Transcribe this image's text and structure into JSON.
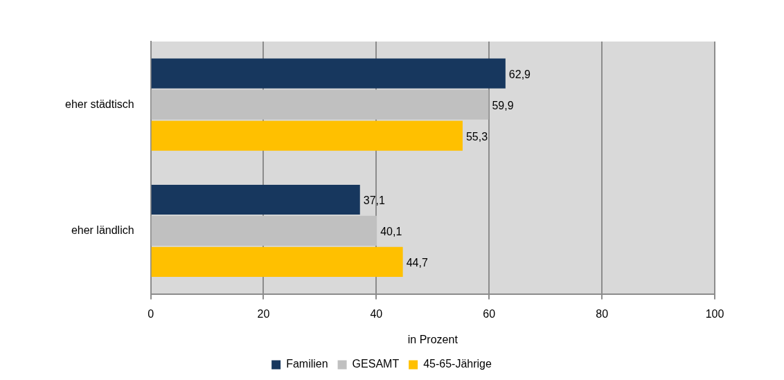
{
  "chart_data": {
    "type": "bar",
    "orientation": "horizontal",
    "xlabel": "in Prozent",
    "categories": [
      "eher städtisch",
      "eher ländlich"
    ],
    "series": [
      {
        "name": "Familien",
        "color": "#17375e",
        "values": [
          62.9,
          37.1
        ],
        "value_labels": [
          "62,9",
          "37,1"
        ]
      },
      {
        "name": "GESAMT",
        "color": "#c0c0c0",
        "values": [
          59.9,
          40.1
        ],
        "value_labels": [
          "59,9",
          "40,1"
        ]
      },
      {
        "name": "45-65-Jährige",
        "color": "#ffc000",
        "values": [
          55.3,
          44.7
        ],
        "value_labels": [
          "55,3",
          "44,7"
        ]
      }
    ],
    "xlim": [
      0,
      100
    ],
    "xticks": [
      0,
      20,
      40,
      60,
      80,
      100
    ],
    "grid": "x",
    "legend": "bottom"
  }
}
